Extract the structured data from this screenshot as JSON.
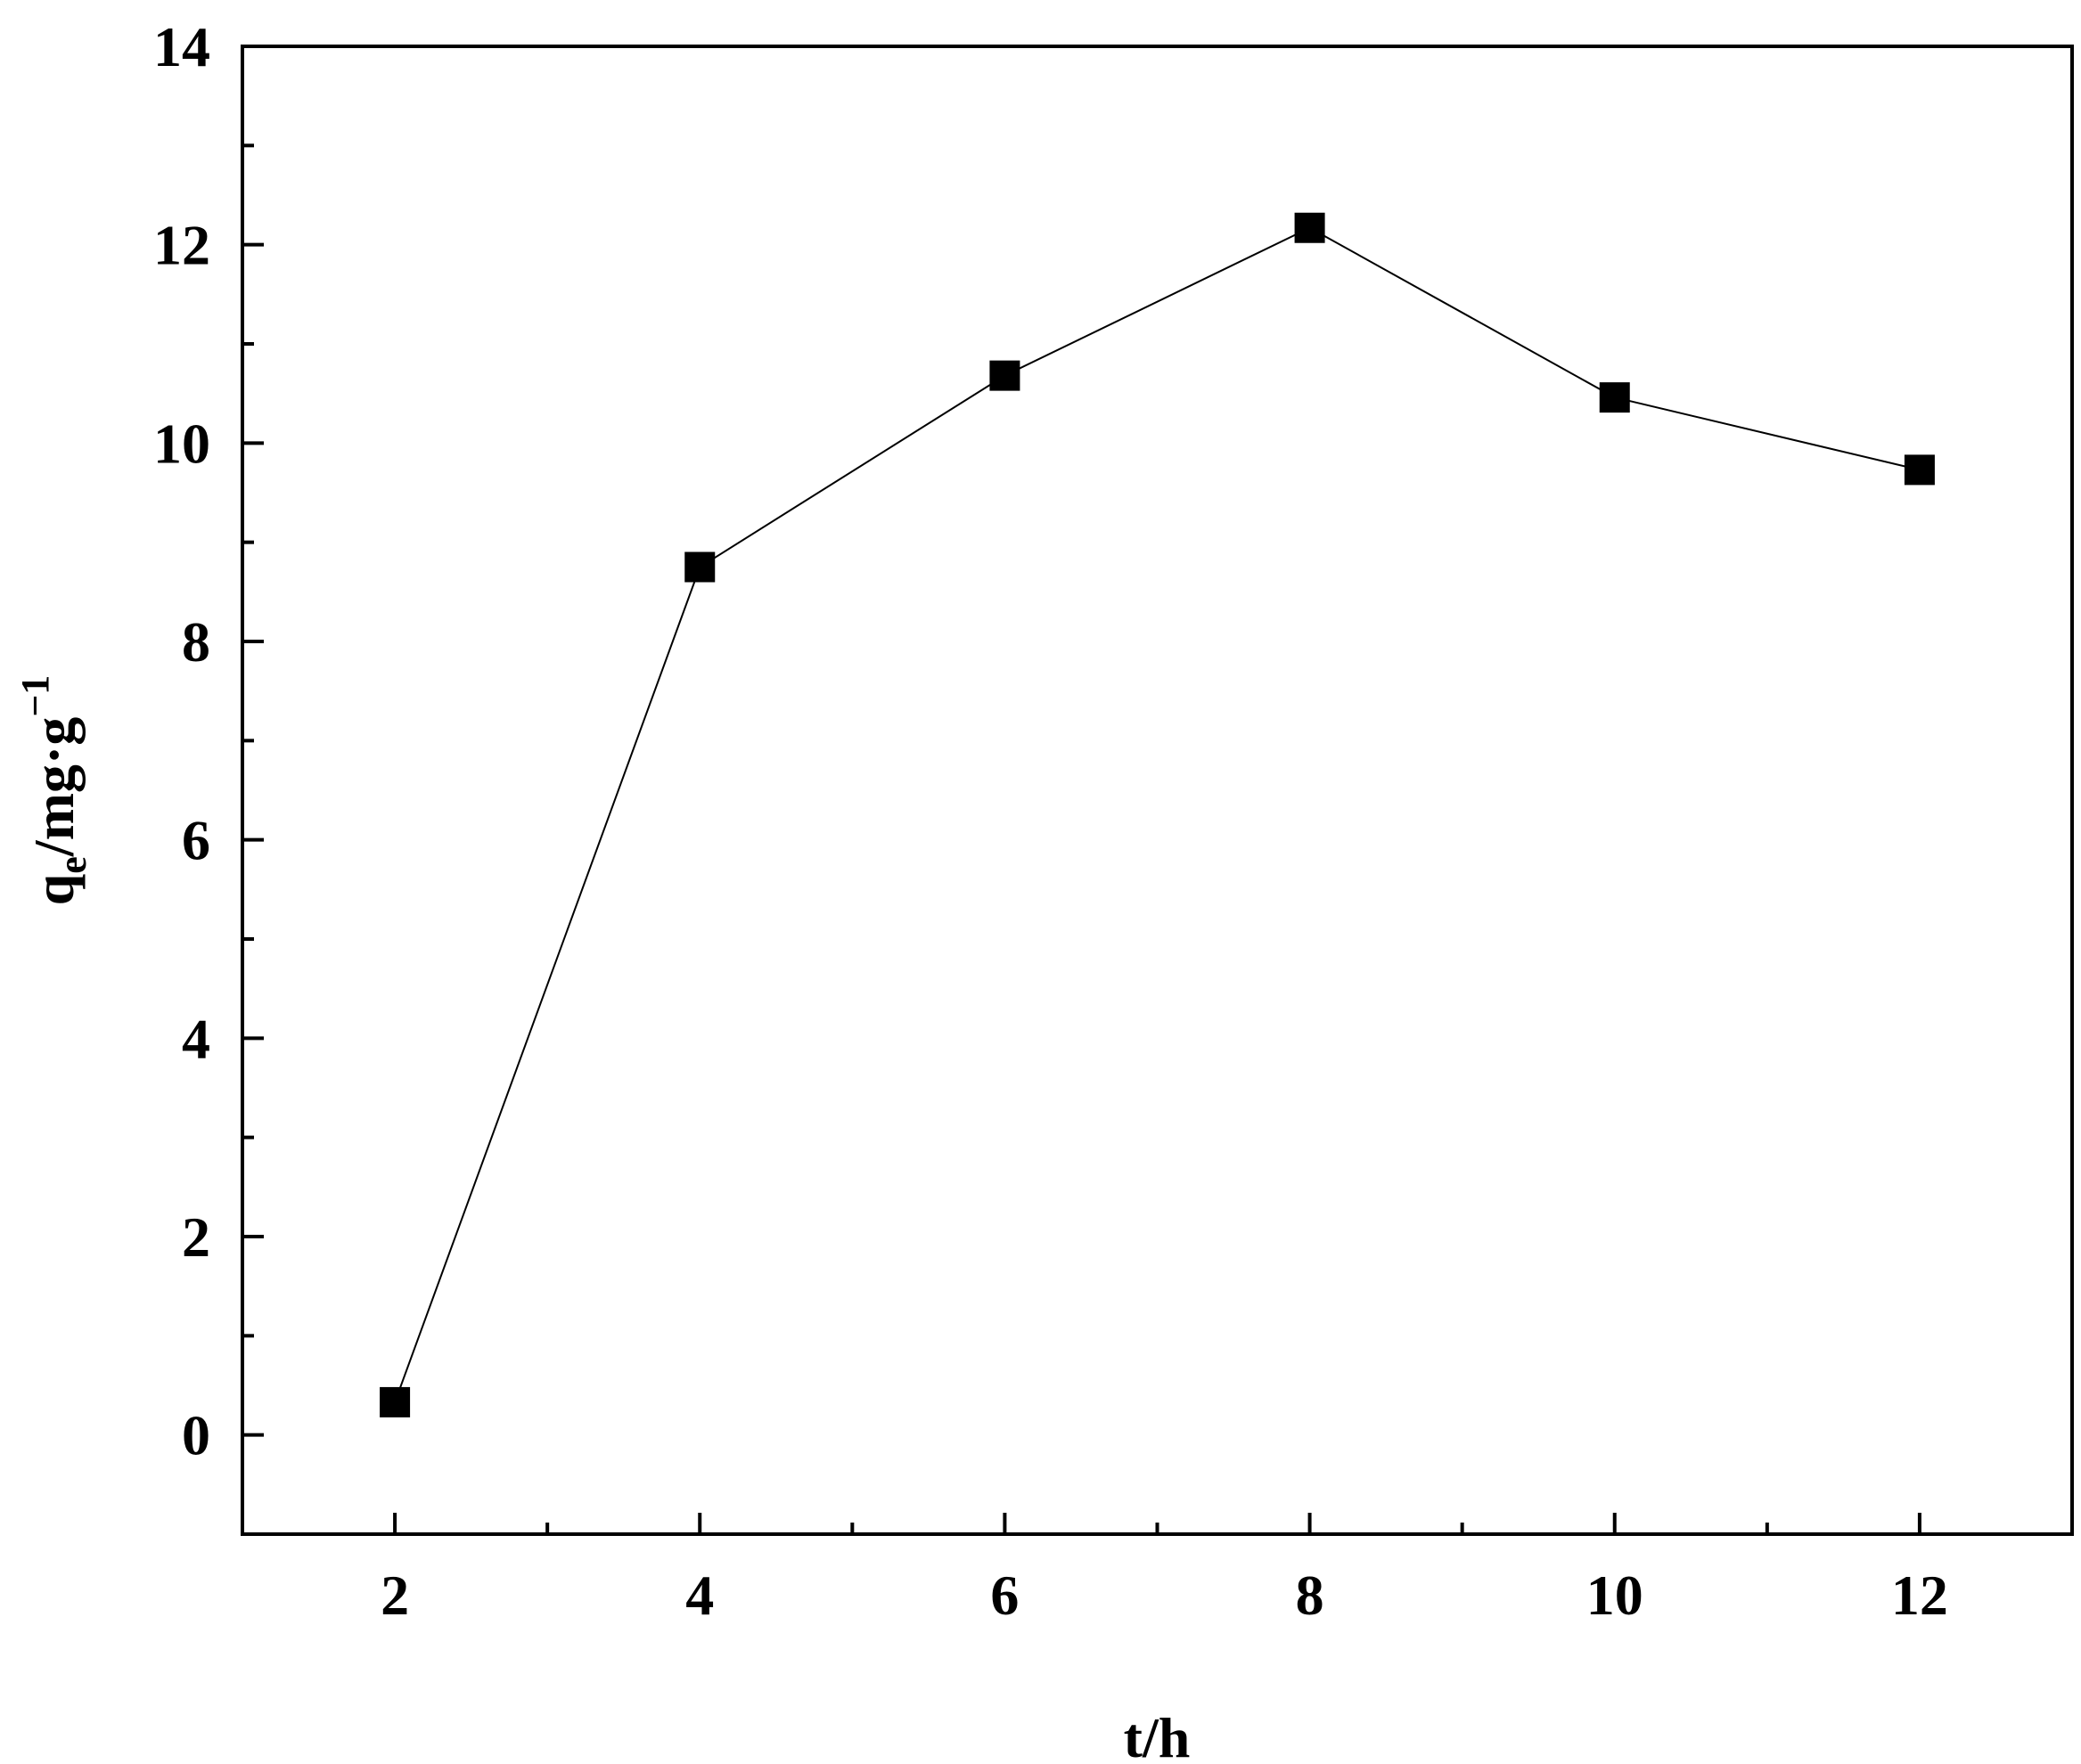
{
  "chart_data": {
    "type": "line",
    "xlabel": "t/h",
    "ylabel": {
      "main": "q",
      "sub": "e",
      "rest": "/mg·g",
      "sup": "−1"
    },
    "xlim": [
      1,
      13
    ],
    "ylim": [
      -1,
      14
    ],
    "xticks": [
      2,
      4,
      6,
      8,
      10,
      12
    ],
    "yticks": [
      0,
      2,
      4,
      6,
      8,
      10,
      12,
      14
    ],
    "grid": false,
    "series": [
      {
        "x": [
          2,
          4,
          6,
          8,
          10,
          12
        ],
        "y": [
          0.33,
          8.75,
          10.68,
          12.17,
          10.46,
          9.73
        ],
        "marker": "square",
        "color": "#000000"
      }
    ]
  }
}
